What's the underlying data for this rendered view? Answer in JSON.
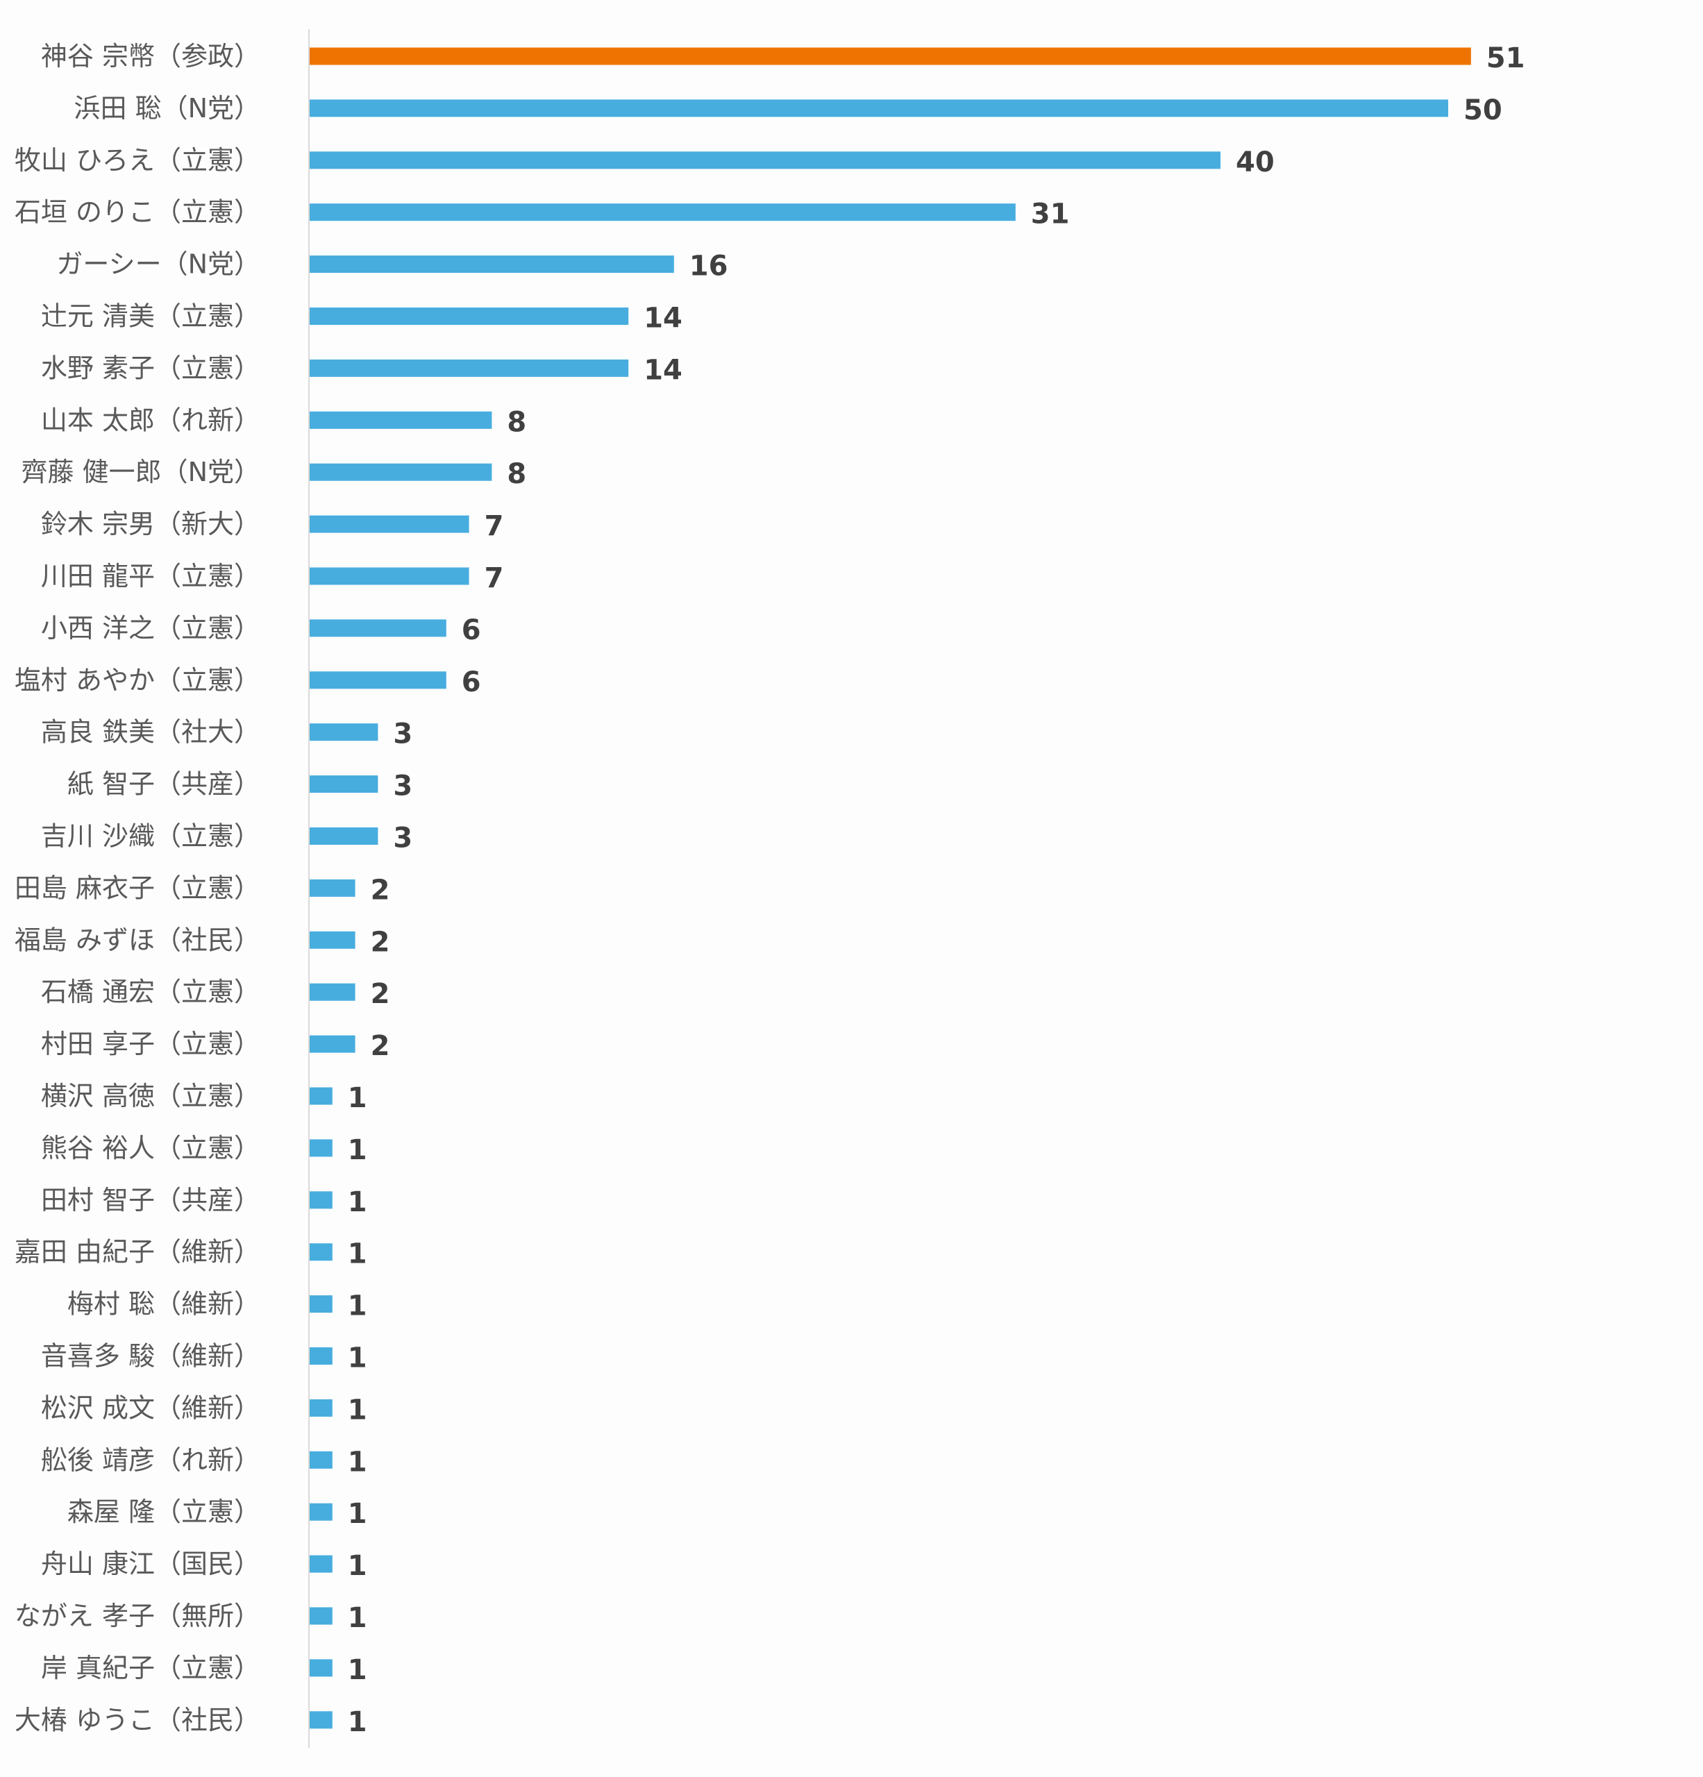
{
  "chart_data": {
    "type": "bar",
    "orientation": "horizontal",
    "categories": [
      "神谷 宗幣（参政）",
      "浜田 聡（N党）",
      "牧山 ひろえ（立憲）",
      "石垣 のりこ（立憲）",
      "ガーシー（N党）",
      "辻元 清美（立憲）",
      "水野 素子（立憲）",
      "山本 太郎（れ新）",
      "齊藤 健一郎（N党）",
      "鈴木 宗男（新大）",
      "川田 龍平（立憲）",
      "小西 洋之（立憲）",
      "塩村 あやか（立憲）",
      "高良 鉄美（社大）",
      "紙 智子（共産）",
      "吉川 沙織（立憲）",
      "田島 麻衣子（立憲）",
      "福島 みずほ（社民）",
      "石橋 通宏（立憲）",
      "村田 享子（立憲）",
      "横沢 高徳（立憲）",
      "熊谷 裕人（立憲）",
      "田村 智子（共産）",
      "嘉田 由紀子（維新）",
      "梅村 聡（維新）",
      "音喜多 駿（維新）",
      "松沢 成文（維新）",
      "舩後 靖彦（れ新）",
      "森屋 隆（立憲）",
      "舟山 康江（国民）",
      "ながえ 孝子（無所）",
      "岸 真紀子（立憲）",
      "大椿 ゆうこ（社民）"
    ],
    "values": [
      51,
      50,
      40,
      31,
      16,
      14,
      14,
      8,
      8,
      7,
      7,
      6,
      6,
      3,
      3,
      3,
      2,
      2,
      2,
      2,
      1,
      1,
      1,
      1,
      1,
      1,
      1,
      1,
      1,
      1,
      1,
      1,
      1
    ],
    "highlight_index": 0,
    "colors": {
      "highlight": "#EE7300",
      "default": "#47ADDF",
      "axis": "#D9D9D9",
      "category_text": "#595959",
      "value_text": "#404040"
    },
    "xlim": [
      0,
      55
    ],
    "grid": false,
    "legend": "none",
    "data_labels": true
  }
}
